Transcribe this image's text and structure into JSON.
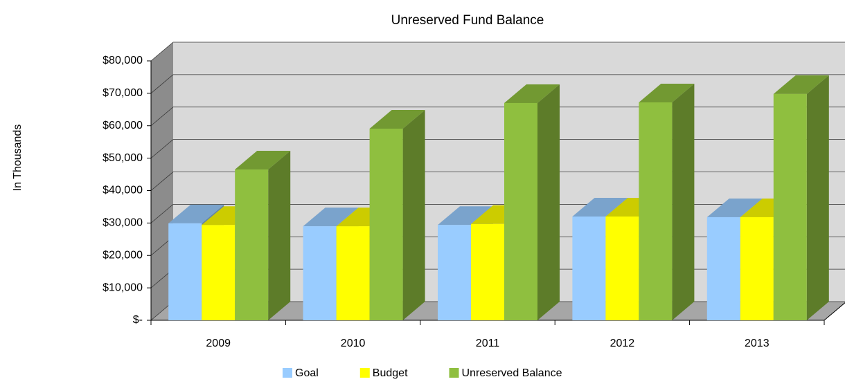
{
  "chart_data": {
    "type": "bar3d",
    "title": "Unreserved Fund Balance",
    "y_label": "In Thousands",
    "categories": [
      "2009",
      "2010",
      "2011",
      "2012",
      "2013"
    ],
    "series": [
      {
        "name": "Goal",
        "color": "#99ccff",
        "values": [
          29900,
          29000,
          29400,
          32000,
          31800
        ]
      },
      {
        "name": "Budget",
        "color": "#ffff00",
        "values": [
          29400,
          29000,
          29700,
          32000,
          31800
        ]
      },
      {
        "name": "Unreserved Balance",
        "color": "#8fbf3f",
        "values": [
          46500,
          59100,
          67000,
          67200,
          69800
        ]
      }
    ],
    "ylim": [
      0,
      80000
    ],
    "yticks": [
      {
        "value": 0,
        "label": "$-"
      },
      {
        "value": 10000,
        "label": "$10,000"
      },
      {
        "value": 20000,
        "label": "$20,000"
      },
      {
        "value": 30000,
        "label": "$30,000"
      },
      {
        "value": 40000,
        "label": "$40,000"
      },
      {
        "value": 50000,
        "label": "$50,000"
      },
      {
        "value": 60000,
        "label": "$60,000"
      },
      {
        "value": 70000,
        "label": "$70,000"
      },
      {
        "value": 80000,
        "label": "$80,000"
      }
    ],
    "grid": true
  }
}
